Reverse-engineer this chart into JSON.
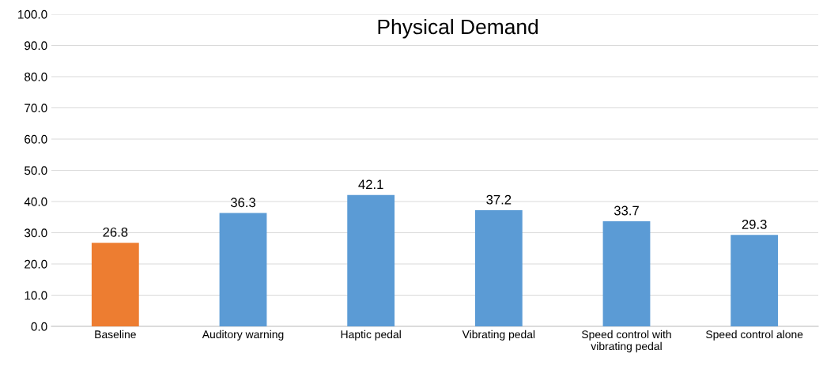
{
  "chart_data": {
    "type": "bar",
    "title": "Physical Demand",
    "categories": [
      "Baseline",
      "Auditory warning",
      "Haptic pedal",
      "Vibrating pedal",
      "Speed control with vibrating pedal",
      "Speed control alone"
    ],
    "values": [
      26.8,
      36.3,
      42.1,
      37.2,
      33.7,
      29.3
    ],
    "colors": [
      "#ed7d31",
      "#5b9bd5",
      "#5b9bd5",
      "#5b9bd5",
      "#5b9bd5",
      "#5b9bd5"
    ],
    "ylim": [
      0,
      100
    ],
    "yticks": [
      {
        "value": 0,
        "label": "0.0"
      },
      {
        "value": 10,
        "label": "10.0"
      },
      {
        "value": 20,
        "label": "20.0"
      },
      {
        "value": 30,
        "label": "30.0"
      },
      {
        "value": 40,
        "label": "40.0"
      },
      {
        "value": 50,
        "label": "50.0"
      },
      {
        "value": 60,
        "label": "60.0"
      },
      {
        "value": 70,
        "label": "70.0"
      },
      {
        "value": 80,
        "label": "80.0"
      },
      {
        "value": 90,
        "label": "90.0"
      },
      {
        "value": 100,
        "label": "100.0"
      }
    ],
    "grid": "y",
    "data_labels": true
  }
}
